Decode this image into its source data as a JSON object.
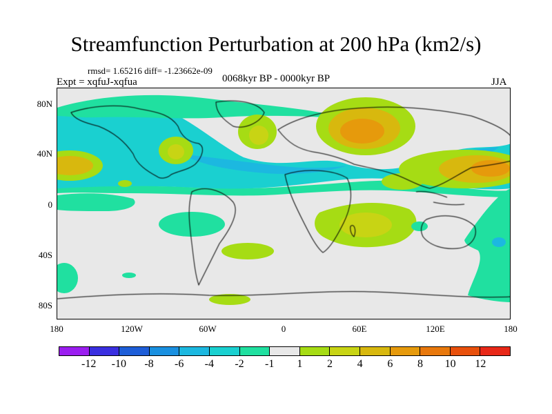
{
  "title": "Streamfunction Perturbation at 200 hPa (km2/s)",
  "stats": "rmsd= 1.65216 diff= -1.23662e-09",
  "experiment": "Expt = xqfuJ-xqfua",
  "period": "0068kyr BP - 0000kyr BP",
  "season": "JJA",
  "lat_ticks": [
    "80N",
    "40N",
    "0",
    "40S",
    "80S"
  ],
  "lon_ticks": [
    "180",
    "120W",
    "60W",
    "0",
    "60E",
    "120E",
    "180"
  ],
  "colorbar": {
    "colors": [
      "#9b1ef0",
      "#3a2fe0",
      "#1e5ed8",
      "#1a90e0",
      "#1cb8e0",
      "#1ad0d0",
      "#20e0a0",
      "#e8e8e8",
      "#a6dc14",
      "#c8d414",
      "#d8b80e",
      "#e69a0c",
      "#e8780c",
      "#e8500c",
      "#e82818"
    ],
    "labels": [
      "-12",
      "-10",
      "-8",
      "-6",
      "-4",
      "-2",
      "-1",
      "1",
      "2",
      "4",
      "6",
      "8",
      "10",
      "12"
    ]
  },
  "map": {
    "background": "#e8e8e8",
    "coastline_color": "#000000"
  }
}
